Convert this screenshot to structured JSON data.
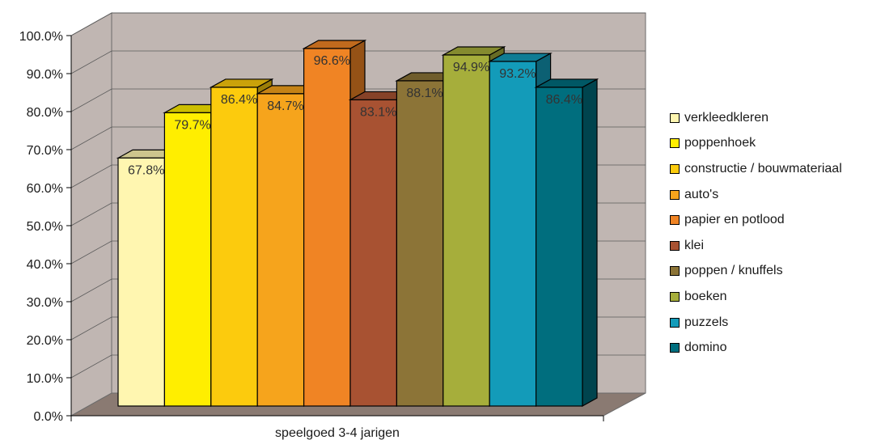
{
  "chart_data": {
    "type": "bar",
    "categories": [
      "speelgoed 3-4 jarigen"
    ],
    "series": [
      {
        "name": "verkleedkleren",
        "values": [
          67.8
        ],
        "label": "67.8%",
        "color": "#fff6b0"
      },
      {
        "name": "poppenhoek",
        "values": [
          79.7
        ],
        "label": "79.7%",
        "color": "#ffee00"
      },
      {
        "name": "constructie / bouwmateriaal",
        "values": [
          86.4
        ],
        "label": "86.4%",
        "color": "#fccb0d"
      },
      {
        "name": "auto's",
        "values": [
          84.7
        ],
        "label": "84.7%",
        "color": "#f6a41c"
      },
      {
        "name": "papier en potlood",
        "values": [
          96.6
        ],
        "label": "96.6%",
        "color": "#f08424"
      },
      {
        "name": "klei",
        "values": [
          83.1
        ],
        "label": "83.1%",
        "color": "#a85232"
      },
      {
        "name": "poppen / knuffels",
        "values": [
          88.1
        ],
        "label": "88.1%",
        "color": "#8c7437"
      },
      {
        "name": "boeken",
        "values": [
          94.9
        ],
        "label": "94.9%",
        "color": "#a6ae3b"
      },
      {
        "name": "puzzels",
        "values": [
          93.2
        ],
        "label": "93.2%",
        "color": "#139bb9"
      },
      {
        "name": "domino",
        "values": [
          86.4
        ],
        "label": "86.4%",
        "color": "#006e7e"
      }
    ],
    "yticks": [
      "0.0%",
      "10.0%",
      "20.0%",
      "30.0%",
      "40.0%",
      "50.0%",
      "60.0%",
      "70.0%",
      "80.0%",
      "90.0%",
      "100.0%"
    ],
    "ylim": [
      0,
      100
    ],
    "xlabel": "",
    "ylabel": "",
    "title": "",
    "legend_position": "right",
    "grid": true,
    "style": "3d",
    "wall_color": "#c0b6b2",
    "floor_color": "#8a7a72"
  }
}
